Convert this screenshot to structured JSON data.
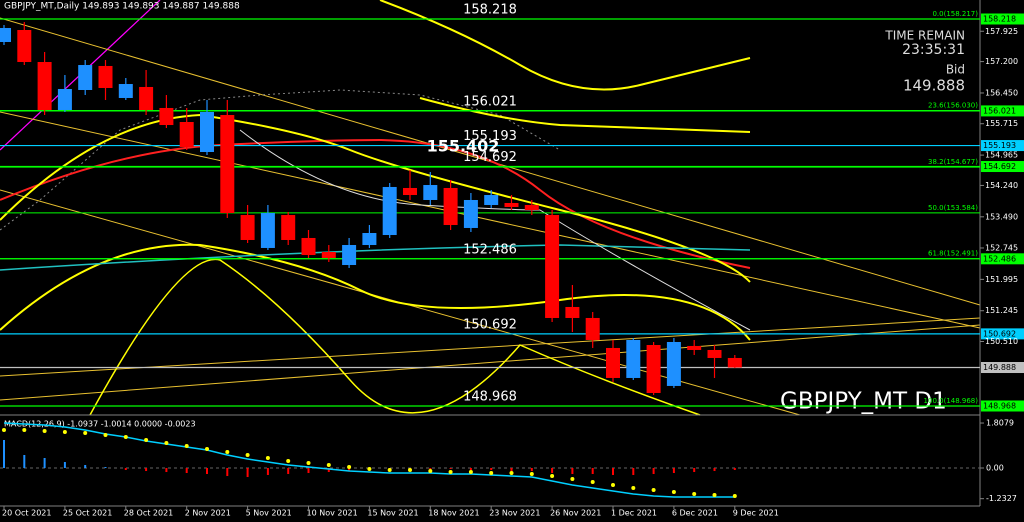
{
  "chart_data": {
    "type": "candlestick",
    "title": "GBPJPY_MT,Daily  149.893 149.893 149.887 149.888",
    "watermark": "GBPJPY_MT D1",
    "info": {
      "time_remain_label": "TIME REMAIN",
      "time_remain": "23:35:31",
      "bid_label": "Bid",
      "bid": 149.888
    },
    "categories": [
      "20 Oct 2021",
      null,
      null,
      "25 Oct 2021",
      null,
      null,
      "28 Oct 2021",
      null,
      null,
      "2 Nov 2021",
      null,
      null,
      "5 Nov 2021",
      null,
      null,
      "10 Nov 2021",
      null,
      null,
      "15 Nov 2021",
      null,
      null,
      "18 Nov 2021",
      null,
      null,
      "23 Nov 2021",
      null,
      null,
      "26 Nov 2021",
      null,
      null,
      "1 Dec 2021",
      null,
      null,
      "6 Dec 2021",
      null,
      null,
      "9 Dec 2021"
    ],
    "open": [
      157.668,
      157.955,
      157.19,
      156.043,
      156.521,
      157.095,
      156.33,
      156.593,
      156.091,
      155.756,
      155.039,
      155.923,
      153.533,
      152.745,
      153.533,
      152.984,
      152.649,
      152.338,
      152.816,
      153.055,
      154.179,
      153.892,
      154.179,
      153.223,
      153.772,
      153.82,
      153.772,
      153.533,
      151.335,
      151.072,
      150.355,
      149.638,
      150.426,
      149.447,
      150.403,
      150.307,
      150.116
    ],
    "high": [
      158.074,
      158.146,
      157.429,
      156.879,
      157.238,
      157.238,
      156.808,
      156.999,
      156.401,
      156.091,
      156.282,
      156.282,
      153.772,
      153.772,
      153.605,
      153.175,
      152.816,
      152.984,
      153.294,
      154.298,
      154.609,
      154.561,
      154.37,
      154.059,
      154.131,
      154.011,
      153.892,
      153.653,
      151.86,
      151.215,
      150.546,
      150.594,
      150.498,
      150.594,
      150.546,
      150.426,
      150.187
    ],
    "low": [
      157.596,
      157.118,
      155.923,
      155.995,
      156.401,
      156.282,
      156.282,
      155.923,
      155.613,
      155.087,
      154.967,
      153.462,
      152.864,
      152.697,
      152.816,
      152.506,
      152.41,
      152.267,
      152.745,
      152.984,
      153.892,
      153.772,
      153.175,
      153.127,
      153.701,
      153.653,
      153.533,
      150.976,
      150.737,
      150.355,
      149.542,
      149.59,
      149.231,
      149.399,
      150.187,
      149.638,
      149.877
    ],
    "close": [
      158.003,
      157.19,
      156.043,
      156.545,
      157.118,
      156.569,
      156.664,
      156.043,
      155.684,
      155.159,
      155.995,
      153.581,
      152.936,
      153.581,
      152.936,
      152.577,
      152.506,
      152.816,
      153.103,
      154.203,
      154.011,
      154.25,
      153.294,
      153.892,
      154.011,
      153.725,
      153.653,
      151.072,
      151.072,
      150.546,
      149.638,
      150.546,
      149.279,
      150.498,
      150.307,
      150.116,
      149.888
    ],
    "up_color": "#1e90ff",
    "down_color": "#ff0000",
    "ylim": [
      148.753,
      158.672
    ],
    "yticks": [
      157.925,
      {
        "value": 157.2,
        "label": "157.200"
      },
      {
        "value": 156.45,
        "label": "156.450"
      },
      155.715,
      154.965,
      {
        "value": 154.24,
        "label": "154.240"
      },
      {
        "value": 153.49,
        "label": "153.490"
      },
      152.745,
      151.995,
      151.245,
      {
        "value": 150.51,
        "label": "150.510"
      }
    ],
    "levels": [
      158.218,
      156.021,
      155.193,
      154.692,
      152.486,
      150.692,
      149.888,
      148.968
    ],
    "level_colors": [
      "#00ff00",
      "#00ff00",
      "#00cfff",
      "#00ff00",
      "#00ff00",
      "#00cfff",
      "#c0c0c0",
      "#00ff00"
    ],
    "highlight": 155.402,
    "fibonacci": [
      {
        "value": 158.217,
        "label": "0.0(158.217)"
      },
      {
        "value": 156.03,
        "label": "23.6(156.030)"
      },
      {
        "value": 154.677,
        "label": "38.2(154.677)"
      },
      {
        "value": 153.584,
        "label": "50.0(153.584)"
      },
      {
        "value": 152.491,
        "label": "61.8(152.491)"
      },
      {
        "value": 148.968,
        "label": "100.0(148.968)"
      }
    ],
    "fib_color": "#00ff00",
    "macd": {
      "title": "MACD(12,26,9) -1.0937 -1.0014 0.0000 -0.0023",
      "ylim": [
        -1.487,
        2.01
      ],
      "yticks": [
        1.8079,
        {
          "value": 0,
          "label": "0.00"
        },
        -1.2327
      ],
      "histogram": [
        1.126,
        0.523,
        0.402,
        0.241,
        0.121,
        0.04,
        -0.08,
        -0.121,
        -0.161,
        -0.201,
        -0.241,
        -0.322,
        -0.362,
        -0.281,
        -0.241,
        -0.201,
        -0.161,
        -0.121,
        -0.08,
        -0.08,
        -0.04,
        -0.04,
        -0.04,
        -0.08,
        -0.08,
        -0.121,
        -0.121,
        -0.201,
        -0.241,
        -0.241,
        -0.281,
        -0.281,
        -0.241,
        -0.201,
        -0.161,
        -0.121,
        -0.08
      ],
      "line": [
        1.809,
        1.769,
        1.729,
        1.648,
        1.528,
        1.367,
        1.246,
        1.085,
        0.965,
        0.844,
        0.724,
        0.523,
        0.362,
        0.241,
        0.121,
        0.04,
        -0.04,
        -0.121,
        -0.161,
        -0.201,
        -0.201,
        -0.201,
        -0.241,
        -0.241,
        -0.281,
        -0.322,
        -0.362,
        -0.523,
        -0.683,
        -0.804,
        -0.925,
        -1.045,
        -1.126,
        -1.166,
        -1.166,
        -1.166,
        -1.166
      ],
      "dots": [
        1.528,
        1.528,
        1.487,
        1.447,
        1.407,
        1.327,
        1.246,
        1.126,
        1.005,
        0.884,
        0.764,
        0.643,
        0.523,
        0.402,
        0.281,
        0.201,
        0.121,
        0.04,
        -0.04,
        -0.08,
        -0.08,
        -0.121,
        -0.161,
        -0.161,
        -0.201,
        -0.201,
        -0.241,
        -0.322,
        -0.442,
        -0.563,
        -0.683,
        -0.804,
        -0.884,
        -0.965,
        -1.045,
        -1.085,
        -1.126
      ],
      "up_color": "#1e90ff",
      "down_color": "#ff0000",
      "line_color": "#00cfff",
      "dot_color": "#ffff00"
    }
  }
}
